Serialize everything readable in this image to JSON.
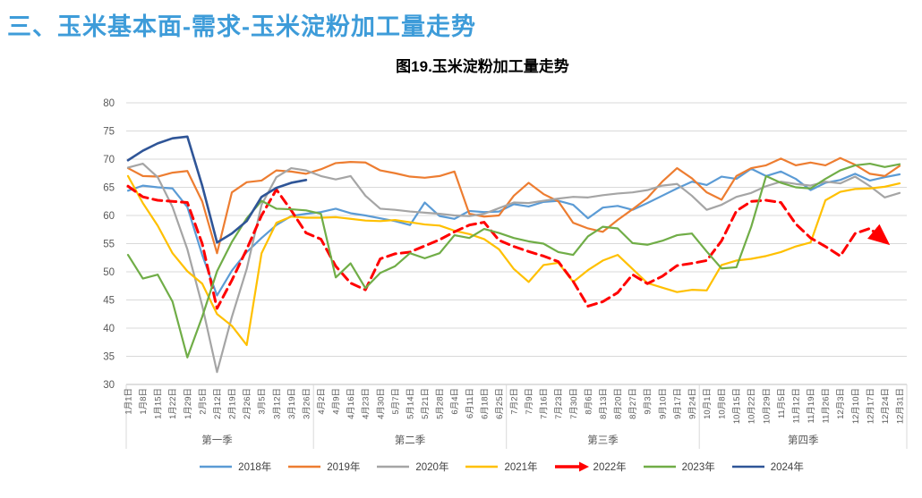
{
  "page": {
    "title": "三、玉米基本面-需求-玉米淀粉加工量走势"
  },
  "chart": {
    "title": "图19.玉米淀粉加工量走势"
  },
  "colors": {
    "page_title": "#3E9CD9",
    "gridline": "#D9D9D9",
    "axis_line": "#BFBFBF",
    "tick_label": "#595959",
    "legend_text": "#404040"
  },
  "chart_data": {
    "type": "line",
    "title": "图19.玉米淀粉加工量走势",
    "ylim": [
      30,
      80
    ],
    "yticks": [
      30,
      35,
      40,
      45,
      50,
      55,
      60,
      65,
      70,
      75,
      80
    ],
    "grid": true,
    "legend_position": "bottom",
    "x_labels": [
      "1月1日",
      "1月8日",
      "1月15日",
      "1月22日",
      "1月29日",
      "2月5日",
      "2月12日",
      "2月19日",
      "2月26日",
      "3月5日",
      "3月12日",
      "3月19日",
      "3月26日",
      "4月2日",
      "4月9日",
      "4月16日",
      "4月23日",
      "4月30日",
      "5月7日",
      "5月14日",
      "5月21日",
      "5月28日",
      "6月4日",
      "6月11日",
      "6月18日",
      "6月25日",
      "7月2日",
      "7月9日",
      "7月16日",
      "7月23日",
      "7月30日",
      "8月6日",
      "8月13日",
      "8月20日",
      "8月27日",
      "9月3日",
      "9月10日",
      "9月17日",
      "9月24日",
      "10月1日",
      "10月8日",
      "10月15日",
      "10月22日",
      "10月29日",
      "11月5日",
      "11月12日",
      "11月19日",
      "11月26日",
      "12月3日",
      "12月10日",
      "12月17日",
      "12月24日",
      "12月31日"
    ],
    "quarters": [
      {
        "label": "第一季",
        "start": 0,
        "end": 12
      },
      {
        "label": "第二季",
        "start": 13,
        "end": 25
      },
      {
        "label": "第三季",
        "start": 26,
        "end": 38
      },
      {
        "label": "第四季",
        "start": 39,
        "end": 52
      }
    ],
    "series": [
      {
        "name": "2018年",
        "color": "#5B9BD5",
        "style": "solid",
        "width": 2.2,
        "values": [
          64.4,
          65.3,
          65,
          64.8,
          61.5,
          53,
          45.8,
          50.2,
          53.5,
          56,
          58.3,
          59.9,
          60.3,
          60.6,
          61.2,
          60.4,
          60,
          59.5,
          59,
          58.3,
          62.3,
          59.9,
          59.4,
          60.8,
          60.6,
          60.7,
          62,
          61.6,
          62.4,
          62.6,
          61.9,
          59.5,
          61.4,
          61.7,
          61,
          62.2,
          63.5,
          64.8,
          66,
          65.4,
          66.9,
          66.5,
          68.3,
          67,
          67.8,
          66.5,
          64.5,
          65.8,
          66.3,
          67.4,
          66.2,
          66.8,
          67.3
        ]
      },
      {
        "name": "2019年",
        "color": "#ED7D31",
        "style": "solid",
        "width": 2.2,
        "values": [
          68.4,
          67,
          66.9,
          67.6,
          67.9,
          62.5,
          53.3,
          64.1,
          65.9,
          66.2,
          68,
          67.8,
          67.4,
          68.2,
          69.3,
          69.5,
          69.4,
          68,
          67.5,
          66.9,
          66.7,
          67,
          67.8,
          60.3,
          59.8,
          60,
          63.5,
          65.8,
          63.8,
          62.5,
          58.7,
          57.7,
          57.1,
          59.2,
          61.1,
          63.1,
          66,
          68.4,
          66.6,
          64.1,
          62.8,
          67,
          68.4,
          68.9,
          70.1,
          68.9,
          69.4,
          68.9,
          70.2,
          69,
          67.4,
          67,
          68.8
        ]
      },
      {
        "name": "2020年",
        "color": "#A5A5A5",
        "style": "solid",
        "width": 2.2,
        "values": [
          68.5,
          69.2,
          66.8,
          61.5,
          54,
          44,
          32.2,
          42,
          50.5,
          61.9,
          66.8,
          68.4,
          68,
          67,
          66.4,
          67,
          63.5,
          61.2,
          61,
          60.7,
          60.5,
          60.3,
          60,
          59.9,
          60.3,
          61.3,
          62.3,
          62.2,
          62.6,
          63,
          63.3,
          63.2,
          63.6,
          63.9,
          64.1,
          64.5,
          65.3,
          65.6,
          63.5,
          61,
          61.9,
          63.3,
          64,
          65.2,
          66,
          65.6,
          65.3,
          66,
          65.7,
          66.9,
          65.2,
          63.2,
          64
        ]
      },
      {
        "name": "2021年",
        "color": "#FFC000",
        "style": "solid",
        "width": 2.2,
        "values": [
          67,
          62.2,
          58.2,
          53.3,
          50.1,
          47.9,
          42.5,
          40.4,
          37,
          53.3,
          58.7,
          59.8,
          59.6,
          59.6,
          59.7,
          59.4,
          59.1,
          59,
          59.2,
          58.8,
          58.4,
          58.2,
          57.3,
          56.7,
          55.8,
          54,
          50.5,
          48.2,
          51.2,
          51.6,
          48.2,
          50.3,
          52,
          53,
          50.5,
          48,
          47.2,
          46.4,
          46.8,
          46.7,
          51.2,
          52,
          52.3,
          52.8,
          53.5,
          54.5,
          55.2,
          62.7,
          64.2,
          64.7,
          64.8,
          65.1,
          65.7
        ]
      },
      {
        "name": "2022年",
        "color": "#FF0000",
        "style": "dashed",
        "width": 3,
        "arrow_end": true,
        "values": [
          65.2,
          63.3,
          62.7,
          62.5,
          62.3,
          55,
          43.5,
          48.5,
          54,
          60,
          64.6,
          60.9,
          56.9,
          55.8,
          51,
          48,
          46.8,
          52.3,
          53.2,
          53.5,
          54.6,
          55.7,
          57.1,
          58.3,
          58.8,
          55.6,
          54.5,
          53.6,
          52.8,
          51.8,
          48.3,
          43.9,
          44.7,
          46.3,
          49.5,
          47.9,
          49.2,
          51.1,
          51.5,
          52,
          55.5,
          60.8,
          62.5,
          62.7,
          62.3,
          58.5,
          56,
          54.5,
          52.8,
          56.8,
          57.7,
          55.5
        ]
      },
      {
        "name": "2023年",
        "color": "#70AD47",
        "style": "solid",
        "width": 2.2,
        "values": [
          53,
          48.8,
          49.5,
          44.7,
          34.8,
          42,
          50.1,
          55.3,
          59.5,
          62.6,
          61.2,
          61.1,
          60.9,
          60.3,
          49,
          51.5,
          47.1,
          49.8,
          51,
          53.3,
          52.4,
          53.3,
          56.5,
          56,
          57.6,
          56.9,
          56,
          55.4,
          55,
          53.5,
          53,
          56.3,
          58,
          57.7,
          55.1,
          54.8,
          55.5,
          56.5,
          56.8,
          53.6,
          50.6,
          50.8,
          58,
          67,
          65.8,
          65,
          64.8,
          66.5,
          68,
          68.9,
          69.2,
          68.6,
          69.1
        ]
      },
      {
        "name": "2024年",
        "color": "#2F5597",
        "style": "solid",
        "width": 2.6,
        "values": [
          69.8,
          71.5,
          72.8,
          73.7,
          74,
          65.3,
          55.2,
          56.8,
          59,
          63.3,
          64.9,
          65.8,
          66.3
        ]
      }
    ]
  }
}
